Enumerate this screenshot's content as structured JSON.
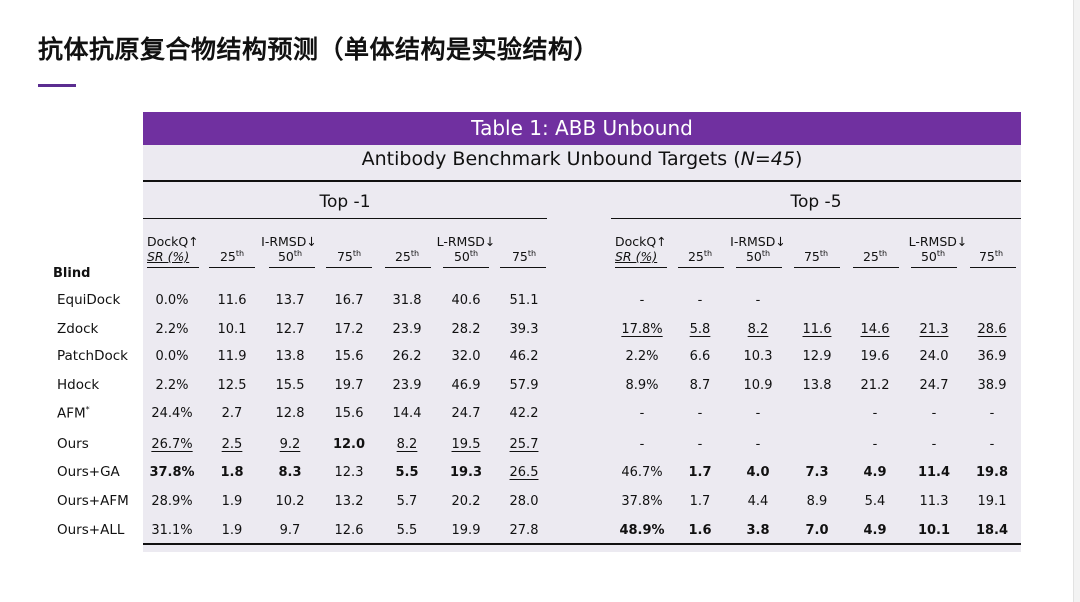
{
  "page_title": "抗体抗原复合物结构预测（单体结构是实验结构）",
  "table": {
    "banner": "Table 1:  ABB Unbound",
    "subtitle_main": "Antibody Benchmark Unbound Targets (",
    "subtitle_n": "N=45",
    "subtitle_end": ")",
    "group_top1": "Top -1",
    "group_top5": "Top -5",
    "dockq_label": "DockQ↑",
    "sr_label": "SR (%)",
    "irmsd_label": "I-RMSD↓",
    "lrmsd_label": "L-RMSD↓",
    "p25": "25",
    "p50": "50",
    "p75": "75",
    "th": "th",
    "blind_label": "Blind",
    "rows": [
      {
        "method": "EquiDock",
        "sup": "",
        "cells": [
          {
            "v": "0.0%"
          },
          {
            "v": "11.6"
          },
          {
            "v": "13.7"
          },
          {
            "v": "16.7"
          },
          {
            "v": "31.8"
          },
          {
            "v": "40.6"
          },
          {
            "v": "51.1"
          },
          {
            "v": "-"
          },
          {
            "v": "-"
          },
          {
            "v": "-"
          },
          {
            "v": ""
          },
          {
            "v": ""
          },
          {
            "v": ""
          },
          {
            "v": ""
          }
        ]
      },
      {
        "method": "Zdock",
        "sup": "",
        "cells": [
          {
            "v": "2.2%"
          },
          {
            "v": "10.1"
          },
          {
            "v": "12.7"
          },
          {
            "v": "17.2"
          },
          {
            "v": "23.9"
          },
          {
            "v": "28.2"
          },
          {
            "v": "39.3"
          },
          {
            "v": "17.8%",
            "u": true
          },
          {
            "v": "5.8",
            "u": true
          },
          {
            "v": "8.2",
            "u": true
          },
          {
            "v": "11.6",
            "u": true
          },
          {
            "v": "14.6",
            "u": true
          },
          {
            "v": "21.3",
            "u": true
          },
          {
            "v": "28.6",
            "u": true
          }
        ]
      },
      {
        "method": "PatchDock",
        "sup": "",
        "cells": [
          {
            "v": "0.0%"
          },
          {
            "v": "11.9"
          },
          {
            "v": "13.8"
          },
          {
            "v": "15.6"
          },
          {
            "v": "26.2"
          },
          {
            "v": "32.0"
          },
          {
            "v": "46.2"
          },
          {
            "v": "2.2%"
          },
          {
            "v": "6.6"
          },
          {
            "v": "10.3"
          },
          {
            "v": "12.9"
          },
          {
            "v": "19.6"
          },
          {
            "v": "24.0"
          },
          {
            "v": "36.9"
          }
        ]
      },
      {
        "method": "Hdock",
        "sup": "",
        "cells": [
          {
            "v": "2.2%"
          },
          {
            "v": "12.5"
          },
          {
            "v": "15.5"
          },
          {
            "v": "19.7"
          },
          {
            "v": "23.9"
          },
          {
            "v": "46.9"
          },
          {
            "v": "57.9"
          },
          {
            "v": "8.9%"
          },
          {
            "v": "8.7"
          },
          {
            "v": "10.9"
          },
          {
            "v": "13.8"
          },
          {
            "v": "21.2"
          },
          {
            "v": "24.7"
          },
          {
            "v": "38.9"
          }
        ]
      },
      {
        "method": "AFM",
        "sup": "*",
        "cells": [
          {
            "v": "24.4%"
          },
          {
            "v": "2.7"
          },
          {
            "v": "12.8"
          },
          {
            "v": "15.6"
          },
          {
            "v": "14.4"
          },
          {
            "v": "24.7"
          },
          {
            "v": "42.2"
          },
          {
            "v": "-"
          },
          {
            "v": "-"
          },
          {
            "v": "-"
          },
          {
            "v": ""
          },
          {
            "v": "-"
          },
          {
            "v": "-"
          },
          {
            "v": "-"
          }
        ]
      },
      {
        "method": "Ours",
        "sup": "",
        "cells": [
          {
            "v": "26.7%",
            "u": true
          },
          {
            "v": "2.5",
            "u": true
          },
          {
            "v": "9.2",
            "u": true
          },
          {
            "v": "12.0",
            "b": true
          },
          {
            "v": "8.2",
            "u": true
          },
          {
            "v": "19.5",
            "u": true
          },
          {
            "v": "25.7",
            "u": true
          },
          {
            "v": "-"
          },
          {
            "v": "-"
          },
          {
            "v": "-"
          },
          {
            "v": ""
          },
          {
            "v": "-"
          },
          {
            "v": "-"
          },
          {
            "v": "-"
          }
        ]
      },
      {
        "method": "Ours+GA",
        "sup": "",
        "cells": [
          {
            "v": "37.8%",
            "b": true
          },
          {
            "v": "1.8",
            "b": true
          },
          {
            "v": "8.3",
            "b": true
          },
          {
            "v": "12.3"
          },
          {
            "v": "5.5",
            "b": true
          },
          {
            "v": "19.3",
            "b": true
          },
          {
            "v": "26.5",
            "u": true
          },
          {
            "v": "46.7%"
          },
          {
            "v": "1.7",
            "b": true
          },
          {
            "v": "4.0",
            "b": true
          },
          {
            "v": "7.3",
            "b": true
          },
          {
            "v": "4.9",
            "b": true
          },
          {
            "v": "11.4",
            "b": true
          },
          {
            "v": "19.8",
            "b": true
          }
        ]
      },
      {
        "method": "Ours+AFM",
        "sup": "",
        "cells": [
          {
            "v": "28.9%"
          },
          {
            "v": "1.9"
          },
          {
            "v": "10.2"
          },
          {
            "v": "13.2"
          },
          {
            "v": "5.7"
          },
          {
            "v": "20.2"
          },
          {
            "v": "28.0"
          },
          {
            "v": "37.8%"
          },
          {
            "v": "1.7"
          },
          {
            "v": "4.4"
          },
          {
            "v": "8.9"
          },
          {
            "v": "5.4"
          },
          {
            "v": "11.3"
          },
          {
            "v": "19.1"
          }
        ]
      },
      {
        "method": "Ours+ALL",
        "sup": "",
        "cells": [
          {
            "v": "31.1%"
          },
          {
            "v": "1.9"
          },
          {
            "v": "9.7"
          },
          {
            "v": "12.6"
          },
          {
            "v": "5.5"
          },
          {
            "v": "19.9"
          },
          {
            "v": "27.8"
          },
          {
            "v": "48.9%",
            "b": true
          },
          {
            "v": "1.6",
            "b": true
          },
          {
            "v": "3.8",
            "b": true
          },
          {
            "v": "7.0",
            "b": true
          },
          {
            "v": "4.9",
            "b": true
          },
          {
            "v": "10.1",
            "b": true
          },
          {
            "v": "18.4",
            "b": true
          }
        ]
      }
    ]
  },
  "colors": {
    "banner": "#7030a0",
    "table_bg": "#eceaf1",
    "accent": "#5b2d90"
  }
}
